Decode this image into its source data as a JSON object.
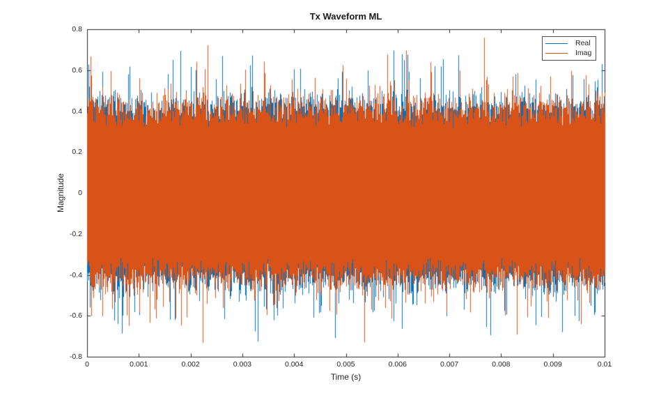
{
  "figure": {
    "background": "#ffffff",
    "axis_color": "#262626",
    "blend_color": "#3a5a7a"
  },
  "chart_data": {
    "type": "line",
    "title": "Tx Waveform ML",
    "xlabel": "Time (s)",
    "ylabel": "Magnitude",
    "xlim": [
      0,
      0.01
    ],
    "ylim": [
      -0.8,
      0.8
    ],
    "grid": false,
    "legend": {
      "position": "northeast",
      "entries": [
        "Real",
        "Imag"
      ]
    },
    "x_ticks": [
      {
        "value": 0.0,
        "label": "0"
      },
      {
        "value": 0.001,
        "label": "0.001"
      },
      {
        "value": 0.002,
        "label": "0.002"
      },
      {
        "value": 0.003,
        "label": "0.003"
      },
      {
        "value": 0.004,
        "label": "0.004"
      },
      {
        "value": 0.005,
        "label": "0.005"
      },
      {
        "value": 0.006,
        "label": "0.006"
      },
      {
        "value": 0.007,
        "label": "0.007"
      },
      {
        "value": 0.008,
        "label": "0.008"
      },
      {
        "value": 0.009,
        "label": "0.009"
      },
      {
        "value": 0.01,
        "label": "0.01"
      }
    ],
    "y_ticks": [
      {
        "value": 0.8,
        "label": "0.8"
      },
      {
        "value": 0.6,
        "label": "0.6"
      },
      {
        "value": 0.4,
        "label": "0.4"
      },
      {
        "value": 0.2,
        "label": "0.2"
      },
      {
        "value": 0.0,
        "label": "0"
      },
      {
        "value": -0.2,
        "label": "-0.2"
      },
      {
        "value": -0.4,
        "label": "-0.4"
      },
      {
        "value": -0.6,
        "label": "-0.6"
      },
      {
        "value": -0.8,
        "label": "-0.8"
      }
    ],
    "series": [
      {
        "name": "Real",
        "color": "#0072BD"
      },
      {
        "name": "Imag",
        "color": "#D95319"
      }
    ],
    "waveform": {
      "description": "Dense zero-mean complex noise waveform; Real and Imag series fully overlapping, Imag drawn on top",
      "core_amplitude": 0.31,
      "typical_peak_range": [
        0.35,
        0.55
      ],
      "max_peak": 0.78,
      "seed": 7
    }
  }
}
